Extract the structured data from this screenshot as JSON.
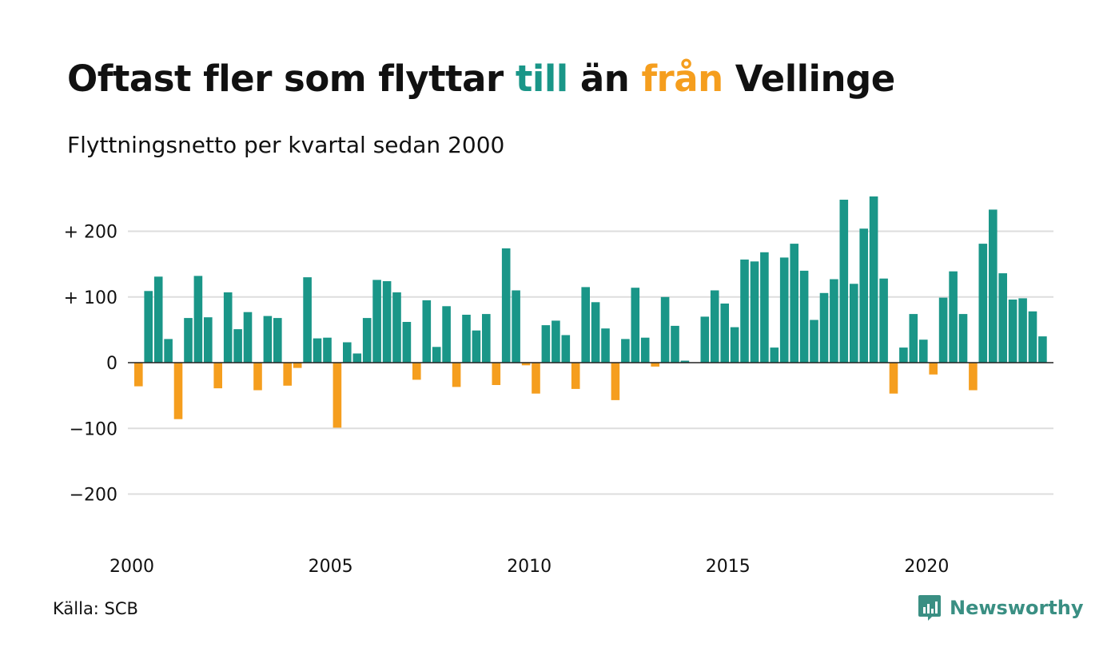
{
  "header": {
    "title_part1": "Oftast fler som flyttar ",
    "title_till": "till",
    "title_part2": " än ",
    "title_fran": "från",
    "title_part3": " Vellinge",
    "subtitle": "Flyttningsnetto per kvartal sedan 2000"
  },
  "footer": {
    "source": "Källa: SCB",
    "brand": "Newsworthy"
  },
  "colors": {
    "positive": "#1a9688",
    "negative": "#f59e1e",
    "grid": "#dddddd",
    "baseline": "#222222",
    "brand": "#3a8f83"
  },
  "icons": {
    "brand_logo": "bar-chart-bubble-icon"
  },
  "chart_data": {
    "type": "bar",
    "title": "Oftast fler som flyttar till än från Vellinge",
    "subtitle": "Flyttningsnetto per kvartal sedan 2000",
    "xlabel": "",
    "ylabel": "",
    "ylim": [
      -240,
      260
    ],
    "grid": true,
    "legend": "none",
    "y_ticks": [
      {
        "value": 200,
        "label": "+ 200"
      },
      {
        "value": 100,
        "label": "+ 100"
      },
      {
        "value": 0,
        "label": "0"
      },
      {
        "value": -100,
        "label": "−100"
      },
      {
        "value": -200,
        "label": "−200"
      }
    ],
    "x_ticks": [
      {
        "year": 2000,
        "label": "2000"
      },
      {
        "year": 2005,
        "label": "2005"
      },
      {
        "year": 2010,
        "label": "2010"
      },
      {
        "year": 2015,
        "label": "2015"
      },
      {
        "year": 2020,
        "label": "2020"
      }
    ],
    "start_year": 2000,
    "values": [
      -36,
      109,
      131,
      36,
      -86,
      68,
      132,
      69,
      -39,
      107,
      51,
      77,
      -42,
      71,
      68,
      -35,
      -8,
      130,
      37,
      38,
      -99,
      31,
      14,
      68,
      126,
      124,
      107,
      62,
      -26,
      95,
      24,
      86,
      -37,
      73,
      49,
      74,
      -34,
      174,
      110,
      -4,
      -47,
      57,
      64,
      42,
      -40,
      115,
      92,
      52,
      -57,
      36,
      114,
      38,
      -6,
      100,
      56,
      3,
      0,
      70,
      110,
      90,
      54,
      157,
      154,
      168,
      23,
      160,
      181,
      140,
      65,
      106,
      127,
      248,
      120,
      204,
      253,
      128,
      -47,
      23,
      74,
      35,
      -18,
      99,
      139,
      74,
      -42,
      181,
      233,
      136,
      96,
      98,
      78,
      40
    ]
  }
}
